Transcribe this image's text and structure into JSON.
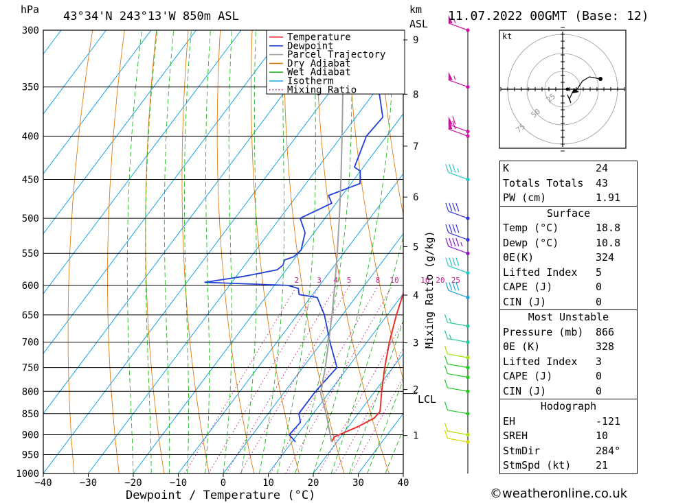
{
  "header": {
    "pressure_unit": "hPa",
    "location": "43°34'N 243°13'W 850m ASL",
    "height_unit": "km",
    "height_ref": "ASL",
    "datetime": "11.07.2022 00GMT (Base: 12)"
  },
  "axes": {
    "xlabel": "Dewpoint / Temperature (°C)",
    "mixing_label": "Mixing Ratio (g/kg)",
    "lcl_label": "LCL"
  },
  "legend": [
    {
      "label": "Temperature",
      "color": "#e8302a",
      "style": "solid"
    },
    {
      "label": "Dewpoint",
      "color": "#1f3fd6",
      "style": "solid"
    },
    {
      "label": "Parcel Trajectory",
      "color": "#a0a0a0",
      "style": "solid"
    },
    {
      "label": "Dry Adiabat",
      "color": "#e07a10",
      "style": "solid"
    },
    {
      "label": "Wet Adiabat",
      "color": "#22b822",
      "style": "solid"
    },
    {
      "label": "Isotherm",
      "color": "#1aa3e8",
      "style": "solid"
    },
    {
      "label": "Mixing Ratio",
      "color": "#c0208a",
      "style": "dotted"
    }
  ],
  "hodograph": {
    "unit": "kt",
    "rings": [
      "25",
      "50",
      "75"
    ]
  },
  "indices": [
    {
      "label": "K",
      "value": "24"
    },
    {
      "label": "Totals Totals",
      "value": "43"
    },
    {
      "label": "PW (cm)",
      "value": "1.91"
    }
  ],
  "surface": {
    "title": "Surface",
    "rows": [
      {
        "label": "Temp (°C)",
        "value": "18.8"
      },
      {
        "label": "Dewp (°C)",
        "value": "10.8"
      },
      {
        "label": "θE(K)",
        "value": "324"
      },
      {
        "label": "Lifted Index",
        "value": "5"
      },
      {
        "label": "CAPE (J)",
        "value": "0"
      },
      {
        "label": "CIN (J)",
        "value": "0"
      }
    ]
  },
  "most_unstable": {
    "title": "Most Unstable",
    "rows": [
      {
        "label": "Pressure (mb)",
        "value": "866"
      },
      {
        "label": "θE (K)",
        "value": "328"
      },
      {
        "label": "Lifted Index",
        "value": "3"
      },
      {
        "label": "CAPE (J)",
        "value": "0"
      },
      {
        "label": "CIN (J)",
        "value": "0"
      }
    ]
  },
  "hodograph_stats": {
    "title": "Hodograph",
    "rows": [
      {
        "label": "EH",
        "value": "-121"
      },
      {
        "label": "SREH",
        "value": "10"
      },
      {
        "label": "StmDir",
        "value": "284°"
      },
      {
        "label": "StmSpd (kt)",
        "value": "21"
      }
    ]
  },
  "credit": "©weatheronline.co.uk",
  "chart_data": {
    "type": "skew-t",
    "xlabel": "Dewpoint / Temperature (°C)",
    "ylabel": "hPa",
    "xlim": [
      -40,
      40
    ],
    "pressure_levels": [
      300,
      350,
      400,
      450,
      500,
      550,
      600,
      650,
      700,
      750,
      800,
      850,
      900,
      950,
      1000
    ],
    "temp_ticks": [
      -40,
      -30,
      -20,
      -10,
      0,
      10,
      20,
      30,
      40
    ],
    "height_ticks_km": [
      {
        "km": "1",
        "p": 902
      },
      {
        "km": "2",
        "p": 796
      },
      {
        "km": "3",
        "p": 701
      },
      {
        "km": "4",
        "p": 616
      },
      {
        "km": "5",
        "p": 540
      },
      {
        "km": "6",
        "p": 472
      },
      {
        "km": "7",
        "p": 411
      },
      {
        "km": "8",
        "p": 357
      },
      {
        "km": "9",
        "p": 308
      }
    ],
    "lcl_pressure": 805,
    "mixing_ratio_labels": [
      "2",
      "3",
      "4",
      "5",
      "8",
      "10",
      "16",
      "20",
      "25"
    ],
    "mixing_ratio_values": [
      2,
      3,
      4,
      5,
      8,
      10,
      16,
      20,
      25
    ],
    "series": [
      {
        "name": "Temperature",
        "color": "#e8302a",
        "points": [
          [
            918,
            18.8
          ],
          [
            905,
            18.6
          ],
          [
            880,
            22.2
          ],
          [
            860,
            24.3
          ],
          [
            845,
            24.5
          ],
          [
            800,
            21.5
          ],
          [
            750,
            18.2
          ],
          [
            700,
            15.0
          ],
          [
            650,
            12.0
          ],
          [
            600,
            9.2
          ],
          [
            595,
            8.6
          ],
          [
            550,
            7.2
          ],
          [
            500,
            2.4
          ],
          [
            450,
            -4.0
          ],
          [
            420,
            -9.0
          ],
          [
            405,
            -11.2
          ],
          [
            380,
            -16.5
          ],
          [
            350,
            -23.0
          ],
          [
            320,
            -30.0
          ],
          [
            300,
            -34.0
          ]
        ]
      },
      {
        "name": "Dewpoint",
        "color": "#1f3fd6",
        "points": [
          [
            918,
            10.8
          ],
          [
            900,
            8.2
          ],
          [
            870,
            8.6
          ],
          [
            850,
            6.8
          ],
          [
            800,
            6.8
          ],
          [
            750,
            7.6
          ],
          [
            700,
            1.8
          ],
          [
            650,
            -4.0
          ],
          [
            620,
            -8.5
          ],
          [
            615,
            -13.0
          ],
          [
            605,
            -14.2
          ],
          [
            600,
            -17.0
          ],
          [
            595,
            -36.0
          ],
          [
            585,
            -28.0
          ],
          [
            575,
            -22.0
          ],
          [
            568,
            -21.5
          ],
          [
            560,
            -22.0
          ],
          [
            555,
            -20.5
          ],
          [
            545,
            -20.0
          ],
          [
            520,
            -22.0
          ],
          [
            500,
            -25.5
          ],
          [
            480,
            -21.0
          ],
          [
            470,
            -23.0
          ],
          [
            455,
            -18.0
          ],
          [
            440,
            -20.0
          ],
          [
            435,
            -22.0
          ],
          [
            420,
            -23.0
          ],
          [
            400,
            -24.5
          ],
          [
            380,
            -24.0
          ],
          [
            355,
            -29.0
          ],
          [
            340,
            -27.5
          ],
          [
            330,
            -26.5
          ],
          [
            320,
            -28.5
          ],
          [
            312,
            -26.5
          ],
          [
            305,
            -31.0
          ],
          [
            300,
            -31.0
          ]
        ]
      },
      {
        "name": "Parcel Trajectory",
        "color": "#a0a0a0",
        "points": [
          [
            918,
            18.8
          ],
          [
            850,
            12.9
          ],
          [
            805,
            8.3
          ],
          [
            750,
            5.0
          ],
          [
            700,
            1.5
          ],
          [
            650,
            -2.3
          ],
          [
            600,
            -6.6
          ],
          [
            550,
            -11.4
          ],
          [
            500,
            -16.8
          ],
          [
            450,
            -22.9
          ],
          [
            400,
            -29.9
          ],
          [
            350,
            -37.9
          ],
          [
            300,
            -47.0
          ]
        ]
      }
    ],
    "wind_profile": [
      {
        "p": 918,
        "spd": 10,
        "color": "#d8d800"
      },
      {
        "p": 900,
        "spd": 10,
        "color": "#b0e000"
      },
      {
        "p": 850,
        "spd": 10,
        "color": "#22c822"
      },
      {
        "p": 800,
        "spd": 10,
        "color": "#22c822"
      },
      {
        "p": 770,
        "spd": 10,
        "color": "#22c822"
      },
      {
        "p": 750,
        "spd": 10,
        "color": "#22c822"
      },
      {
        "p": 730,
        "spd": 10,
        "color": "#a0e000"
      },
      {
        "p": 700,
        "spd": 15,
        "color": "#22c8a0"
      },
      {
        "p": 670,
        "spd": 15,
        "color": "#22c8a0"
      },
      {
        "p": 620,
        "spd": 40,
        "color": "#1aa0e0"
      },
      {
        "p": 580,
        "spd": 40,
        "color": "#22c8c8"
      },
      {
        "p": 550,
        "spd": 45,
        "color": "#9010c0"
      },
      {
        "p": 530,
        "spd": 40,
        "color": "#3030e0"
      },
      {
        "p": 500,
        "spd": 40,
        "color": "#3030e0"
      },
      {
        "p": 450,
        "spd": 35,
        "color": "#22c8c8"
      },
      {
        "p": 400,
        "spd": 60,
        "color": "#d010a0"
      },
      {
        "p": 395,
        "spd": 60,
        "color": "#d010a0"
      },
      {
        "p": 350,
        "spd": 55,
        "color": "#d010a0"
      },
      {
        "p": 300,
        "spd": 55,
        "color": "#d010a0"
      }
    ]
  }
}
